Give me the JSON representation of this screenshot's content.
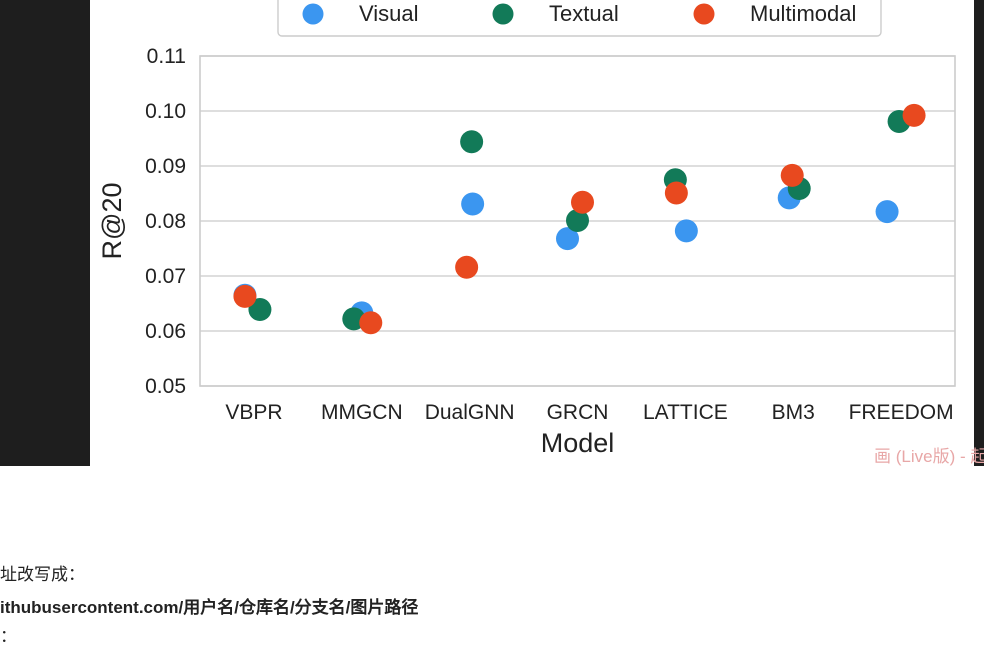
{
  "chart_data": {
    "type": "scatter",
    "title": "",
    "xlabel": "Model",
    "ylabel": "R@20",
    "categories": [
      "VBPR",
      "MMGCN",
      "DualGNN",
      "GRCN",
      "LATTICE",
      "BM3",
      "FREEDOM"
    ],
    "ylim": [
      0.05,
      0.11
    ],
    "yticks": [
      "0.05",
      "0.06",
      "0.07",
      "0.08",
      "0.09",
      "0.10",
      "0.11"
    ],
    "grid": true,
    "legend": "top",
    "series": [
      {
        "name": "Visual",
        "color": "#3b96f0",
        "values": [
          0.0665,
          0.0633,
          0.0831,
          0.0768,
          0.0782,
          0.0842,
          0.0817
        ]
      },
      {
        "name": "Textual",
        "color": "#127a58",
        "values": [
          0.0639,
          0.0622,
          0.0944,
          0.0801,
          0.0875,
          0.0859,
          0.0981
        ]
      },
      {
        "name": "Multimodal",
        "color": "#e8491f",
        "values": [
          0.0663,
          0.0615,
          0.0716,
          0.0834,
          0.0851,
          0.0883,
          0.0992
        ]
      }
    ]
  },
  "watermark": "画 (Live版) - 起",
  "doc_text": {
    "line1": "址改写成：",
    "line2": "ithubusercontent.com/用户名/仓库名/分支名/图片路径",
    "line3": "："
  }
}
